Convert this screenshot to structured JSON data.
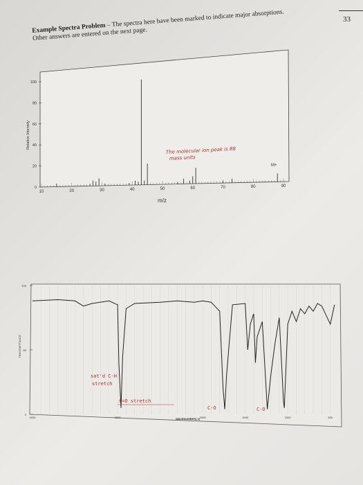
{
  "page_number": "33",
  "intro": {
    "title": "Example Spectra Problem",
    "text": " – The spectra here have been marked to indicate major absorptions. Other answers are entered on the next page."
  },
  "mass_spectrum": {
    "ylabel": "Relative Intensity",
    "xlabel": "m/z",
    "y_ticks": [
      "100",
      "80",
      "60",
      "40",
      "20",
      "0"
    ],
    "x_ticks": [
      "10",
      "20",
      "30",
      "40",
      "50",
      "60",
      "70",
      "80",
      "90"
    ],
    "note": "The molecular ion peak is 88 mass units",
    "mplus_label": "M+"
  },
  "ir_spectrum": {
    "y_ticks": [
      "100",
      "50",
      "0"
    ],
    "x_ticks": [
      "4000",
      "3000",
      "2000",
      "1500",
      "1000",
      "500"
    ],
    "xlabel": "WAVENUMBER(-1)",
    "ylabel": "TRANSMITTANCE",
    "notes": {
      "ch": "sat'd C-H stretch",
      "co_double": "C=O stretch",
      "c_o_1": "C-O",
      "c_o_2": "C-O"
    }
  },
  "chart_data": [
    {
      "type": "bar",
      "title": "",
      "xlabel": "m/z",
      "ylabel": "Relative Intensity",
      "xlim": [
        10,
        90
      ],
      "ylim": [
        0,
        100
      ],
      "x": [
        15,
        26,
        27,
        28,
        29,
        31,
        39,
        41,
        42,
        43,
        44,
        45,
        55,
        57,
        59,
        60,
        61,
        70,
        73,
        88
      ],
      "values": [
        3,
        2,
        5,
        4,
        7,
        2,
        2,
        4,
        3,
        100,
        4,
        20,
        2,
        5,
        3,
        7,
        15,
        2,
        4,
        8
      ],
      "annotations": [
        "The molecular ion peak is 88 mass units",
        "M+"
      ]
    },
    {
      "type": "line",
      "title": "",
      "xlabel": "WAVENUMBER(-1)",
      "ylabel": "TRANSMITTANCE",
      "xlim": [
        4000,
        400
      ],
      "ylim": [
        0,
        100
      ],
      "x": [
        4000,
        3700,
        3500,
        3400,
        3300,
        3100,
        3000,
        2985,
        2960,
        2940,
        2900,
        2800,
        2500,
        2300,
        2100,
        2000,
        1900,
        1800,
        1760,
        1740,
        1720,
        1650,
        1500,
        1470,
        1440,
        1400,
        1380,
        1360,
        1300,
        1240,
        1200,
        1150,
        1100,
        1050,
        1040,
        1000,
        950,
        900,
        850,
        800,
        750,
        700,
        650,
        600,
        500,
        450
      ],
      "y": [
        88,
        89,
        88,
        84,
        86,
        88,
        85,
        40,
        5,
        45,
        82,
        86,
        87,
        88,
        87,
        88,
        87,
        80,
        20,
        4,
        30,
        85,
        86,
        50,
        70,
        78,
        40,
        60,
        72,
        4,
        30,
        55,
        75,
        10,
        5,
        70,
        80,
        72,
        82,
        78,
        84,
        80,
        86,
        84,
        70,
        85
      ],
      "annotations": [
        "sat'd C-H stretch",
        "C=O stretch",
        "C-O",
        "C-O"
      ]
    }
  ]
}
